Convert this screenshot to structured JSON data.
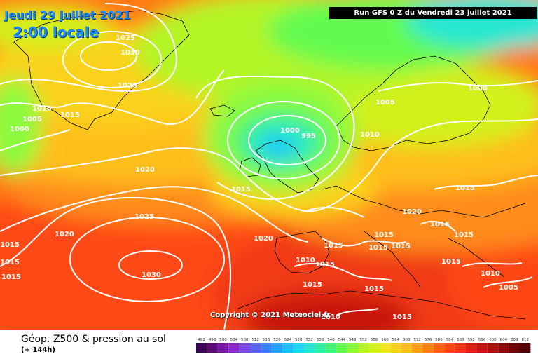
{
  "header": {
    "date": "Jeudi 29 juillet 2021",
    "time": "2:00 locale",
    "run": "Run GFS 0 Z du Vendredi 23 juillet 2021"
  },
  "copyright": "Copyright © 2021 Meteociel.fr",
  "footer": {
    "title": "Géop. Z500 & pression au sol",
    "subtitle": "(+ 144h)"
  },
  "scale": {
    "labels": [
      "492",
      "496",
      "500",
      "504",
      "508",
      "512",
      "516",
      "520",
      "524",
      "528",
      "532",
      "536",
      "540",
      "544",
      "548",
      "552",
      "556",
      "560",
      "564",
      "568",
      "572",
      "576",
      "580",
      "584",
      "588",
      "592",
      "596",
      "600",
      "604",
      "608",
      "612"
    ],
    "colors": [
      "#3c0050",
      "#5a0a78",
      "#7814a0",
      "#8c28c8",
      "#7a46e0",
      "#5a64f0",
      "#3c82ff",
      "#28a0ff",
      "#1ebeff",
      "#1ed7f5",
      "#28e6d2",
      "#32f0a5",
      "#46f578",
      "#64fa50",
      "#8cfa3c",
      "#b4f528",
      "#d2f01e",
      "#ebe61e",
      "#fad21e",
      "#ffbe1e",
      "#ffa01e",
      "#ff8214",
      "#ff6414",
      "#ff4614",
      "#f03214",
      "#dc1e14",
      "#c3140f",
      "#aa0f0a",
      "#8c0a0a",
      "#6e0505",
      "#500000"
    ]
  },
  "isobar_labels": [
    {
      "text": "1025"
    },
    {
      "text": "1030"
    },
    {
      "text": "1020"
    },
    {
      "text": "1010"
    },
    {
      "text": "1015"
    },
    {
      "text": "1005"
    },
    {
      "text": "1000"
    },
    {
      "text": "1020"
    },
    {
      "text": "1000"
    },
    {
      "text": "995"
    },
    {
      "text": "1005"
    },
    {
      "text": "1010"
    },
    {
      "text": "1000"
    },
    {
      "text": "1015"
    },
    {
      "text": "1015"
    },
    {
      "text": "1025"
    },
    {
      "text": "1020"
    },
    {
      "text": "1020"
    },
    {
      "text": "1030"
    },
    {
      "text": "1015"
    },
    {
      "text": "1015"
    },
    {
      "text": "1015"
    },
    {
      "text": "1020"
    },
    {
      "text": "1015"
    },
    {
      "text": "1015"
    },
    {
      "text": "1015"
    },
    {
      "text": "1015"
    },
    {
      "text": "1010"
    },
    {
      "text": "1015"
    },
    {
      "text": "1015"
    },
    {
      "text": "1015"
    },
    {
      "text": "1015"
    },
    {
      "text": "1015"
    },
    {
      "text": "1010"
    },
    {
      "text": "1005"
    },
    {
      "text": "1015"
    },
    {
      "text": "1010"
    },
    {
      "text": "1015"
    }
  ],
  "colors": {
    "title_text": "#1e8cff",
    "isobar": "#ffffff",
    "run_bg": "#000000"
  }
}
